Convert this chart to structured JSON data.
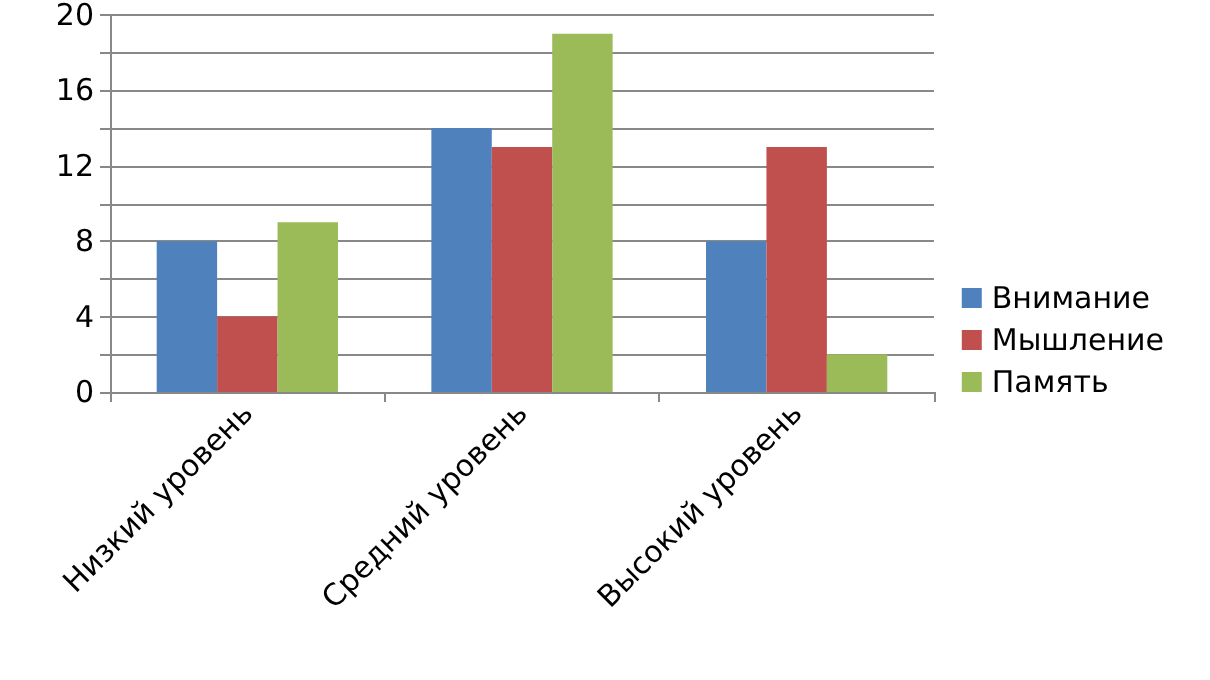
{
  "chart_data": {
    "type": "bar",
    "categories": [
      "Низкий уровень",
      "Средний уровень",
      "Высокий уровень"
    ],
    "series": [
      {
        "name": "Внимание",
        "color": "#4f81bd",
        "values": [
          8,
          14,
          8
        ]
      },
      {
        "name": "Мышление",
        "color": "#c0504d",
        "values": [
          4,
          13,
          13
        ]
      },
      {
        "name": "Память",
        "color": "#9bbb59",
        "values": [
          9,
          19,
          2
        ]
      }
    ],
    "ylim": [
      0,
      20
    ],
    "yticks": [
      0,
      {
        "value": 2,
        "label": null
      },
      4,
      {
        "value": 6,
        "label": null
      },
      8,
      {
        "value": 10,
        "label": null
      },
      12,
      {
        "value": 14,
        "label": null
      },
      16,
      {
        "value": 18,
        "label": null
      },
      20
    ],
    "grid": "y",
    "legend": "right"
  }
}
